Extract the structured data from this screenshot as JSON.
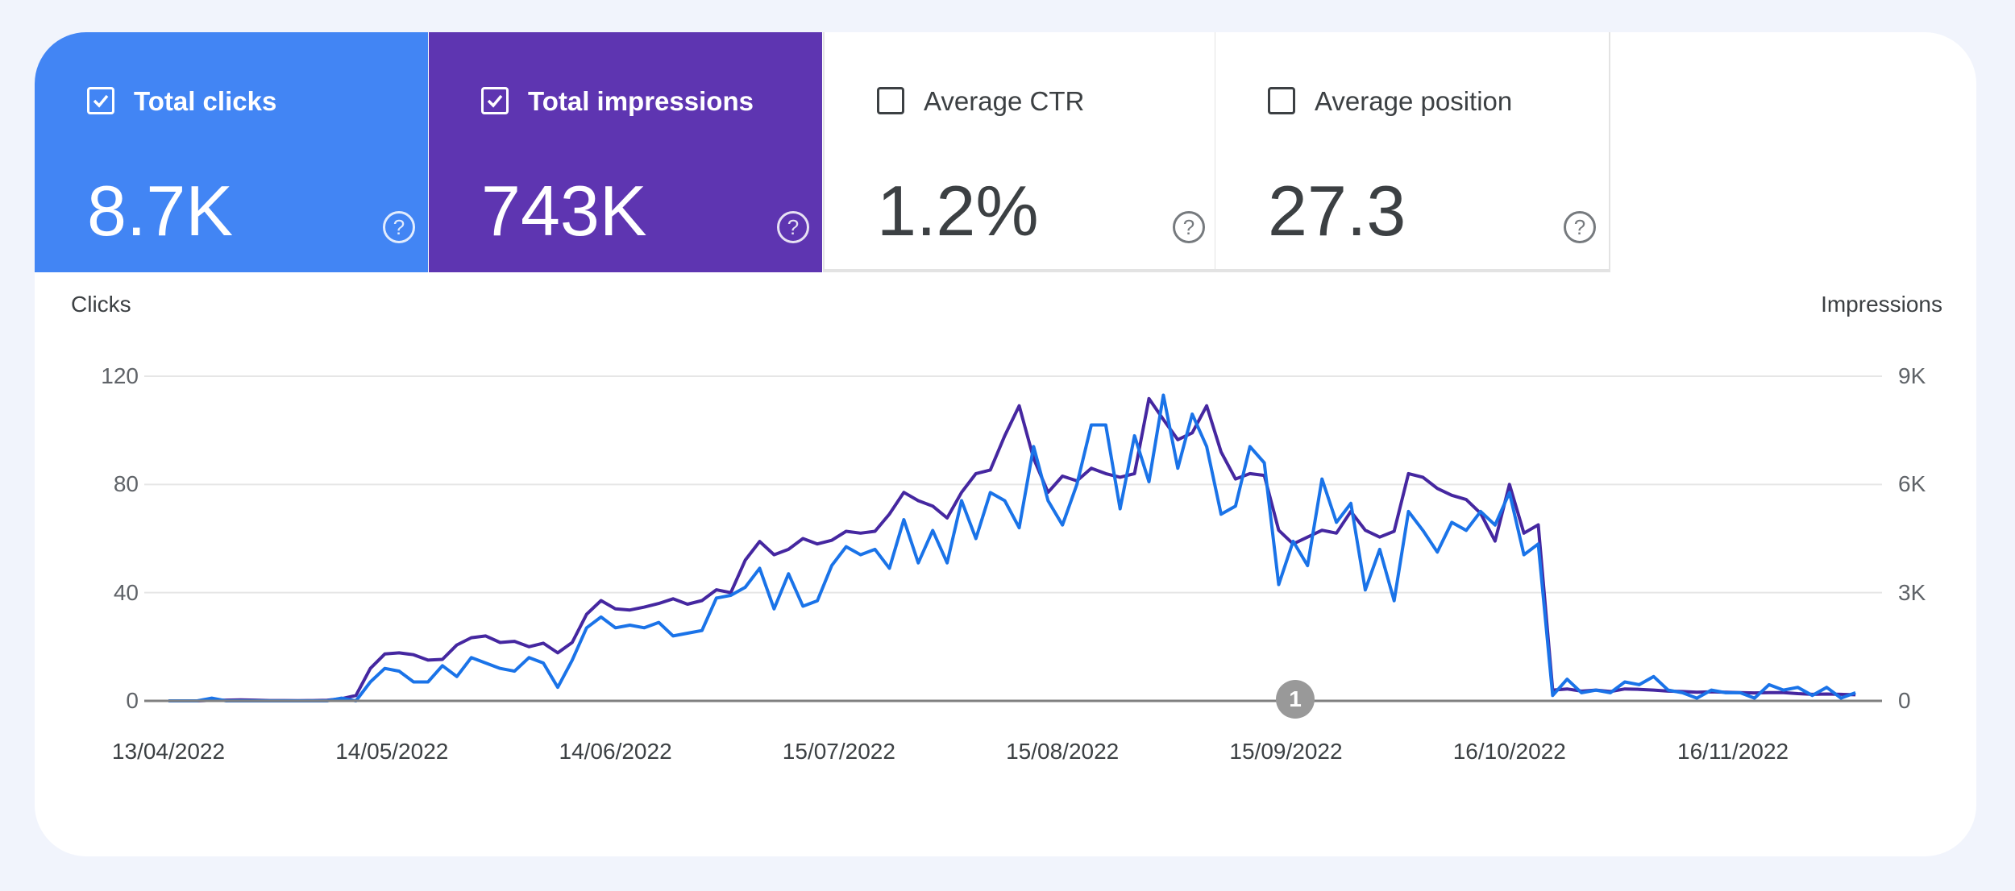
{
  "tiles": [
    {
      "label": "Total clicks",
      "value": "8.7K",
      "checked": true,
      "color": "#4285f4"
    },
    {
      "label": "Total impressions",
      "value": "743K",
      "checked": true,
      "color": "#5e35b1"
    },
    {
      "label": "Average CTR",
      "value": "1.2%",
      "checked": false
    },
    {
      "label": "Average position",
      "value": "27.3",
      "checked": false
    }
  ],
  "help_icon": "question-circle-icon",
  "annotation_marker": "1",
  "chart_data": {
    "type": "line",
    "left_axis": {
      "label": "Clicks",
      "ticks": [
        "0",
        "40",
        "80",
        "120"
      ],
      "range": [
        0,
        120
      ]
    },
    "right_axis": {
      "label": "Impressions",
      "ticks": [
        "0",
        "3K",
        "6K",
        "9K"
      ],
      "range": [
        0,
        9000
      ]
    },
    "x_ticks": [
      "13/04/2022",
      "14/05/2022",
      "14/06/2022",
      "15/07/2022",
      "15/08/2022",
      "15/09/2022",
      "16/10/2022",
      "16/11/2022"
    ],
    "grid": true,
    "series": [
      {
        "key": "clicks",
        "axis": "left",
        "color": "#1a73e8"
      },
      {
        "key": "impressions",
        "axis": "right",
        "color": "#4527a0"
      }
    ],
    "points": [
      [
        "13/04/2022",
        0,
        0
      ],
      [
        "15/04/2022",
        0,
        0
      ],
      [
        "17/04/2022",
        0,
        0
      ],
      [
        "19/04/2022",
        1,
        15
      ],
      [
        "21/04/2022",
        0,
        20
      ],
      [
        "23/04/2022",
        0,
        30
      ],
      [
        "25/04/2022",
        0,
        20
      ],
      [
        "27/04/2022",
        0,
        10
      ],
      [
        "29/04/2022",
        0,
        10
      ],
      [
        "01/05/2022",
        0,
        5
      ],
      [
        "03/05/2022",
        0,
        10
      ],
      [
        "05/05/2022",
        0,
        15
      ],
      [
        "07/05/2022",
        1,
        60
      ],
      [
        "09/05/2022",
        0,
        150
      ],
      [
        "11/05/2022",
        7,
        900
      ],
      [
        "13/05/2022",
        12,
        1300
      ],
      [
        "15/05/2022",
        11,
        1330
      ],
      [
        "17/05/2022",
        7,
        1280
      ],
      [
        "19/05/2022",
        7,
        1130
      ],
      [
        "21/05/2022",
        13,
        1150
      ],
      [
        "23/05/2022",
        9,
        1550
      ],
      [
        "25/05/2022",
        16,
        1750
      ],
      [
        "27/05/2022",
        14,
        1800
      ],
      [
        "29/05/2022",
        12,
        1620
      ],
      [
        "31/05/2022",
        11,
        1650
      ],
      [
        "02/06/2022",
        16,
        1500
      ],
      [
        "04/06/2022",
        14,
        1600
      ],
      [
        "06/06/2022",
        5,
        1330
      ],
      [
        "08/06/2022",
        15,
        1620
      ],
      [
        "10/06/2022",
        27,
        2400
      ],
      [
        "12/06/2022",
        31,
        2780
      ],
      [
        "14/06/2022",
        27,
        2550
      ],
      [
        "16/06/2022",
        28,
        2520
      ],
      [
        "18/06/2022",
        27,
        2600
      ],
      [
        "20/06/2022",
        29,
        2700
      ],
      [
        "22/06/2022",
        24,
        2830
      ],
      [
        "24/06/2022",
        25,
        2680
      ],
      [
        "26/06/2022",
        26,
        2780
      ],
      [
        "28/06/2022",
        38,
        3080
      ],
      [
        "30/06/2022",
        39,
        3000
      ],
      [
        "02/07/2022",
        42,
        3900
      ],
      [
        "04/07/2022",
        49,
        4420
      ],
      [
        "06/07/2022",
        34,
        4050
      ],
      [
        "08/07/2022",
        47,
        4200
      ],
      [
        "10/07/2022",
        35,
        4500
      ],
      [
        "12/07/2022",
        37,
        4350
      ],
      [
        "14/07/2022",
        50,
        4450
      ],
      [
        "16/07/2022",
        57,
        4700
      ],
      [
        "18/07/2022",
        54,
        4650
      ],
      [
        "20/07/2022",
        56,
        4700
      ],
      [
        "22/07/2022",
        49,
        5180
      ],
      [
        "24/07/2022",
        67,
        5780
      ],
      [
        "26/07/2022",
        51,
        5550
      ],
      [
        "28/07/2022",
        63,
        5400
      ],
      [
        "30/07/2022",
        51,
        5070
      ],
      [
        "01/08/2022",
        74,
        5780
      ],
      [
        "03/08/2022",
        60,
        6300
      ],
      [
        "05/08/2022",
        77,
        6400
      ],
      [
        "07/08/2022",
        74,
        7350
      ],
      [
        "09/08/2022",
        64,
        8180
      ],
      [
        "11/08/2022",
        94,
        6720
      ],
      [
        "13/08/2022",
        74,
        5780
      ],
      [
        "15/08/2022",
        65,
        6230
      ],
      [
        "17/08/2022",
        80,
        6100
      ],
      [
        "19/08/2022",
        102,
        6450
      ],
      [
        "21/08/2022",
        102,
        6300
      ],
      [
        "23/08/2022",
        71,
        6200
      ],
      [
        "25/08/2022",
        98,
        6300
      ],
      [
        "27/08/2022",
        81,
        8380
      ],
      [
        "29/08/2022",
        113,
        7800
      ],
      [
        "31/08/2022",
        86,
        7240
      ],
      [
        "02/09/2022",
        106,
        7430
      ],
      [
        "04/09/2022",
        94,
        8180
      ],
      [
        "06/09/2022",
        69,
        6900
      ],
      [
        "08/09/2022",
        72,
        6150
      ],
      [
        "10/09/2022",
        94,
        6300
      ],
      [
        "12/09/2022",
        88,
        6250
      ],
      [
        "14/09/2022",
        43,
        4730
      ],
      [
        "16/09/2022",
        59,
        4350
      ],
      [
        "18/09/2022",
        50,
        4540
      ],
      [
        "20/09/2022",
        82,
        4730
      ],
      [
        "22/09/2022",
        66,
        4650
      ],
      [
        "24/09/2022",
        73,
        5250
      ],
      [
        "26/09/2022",
        41,
        4730
      ],
      [
        "28/09/2022",
        56,
        4540
      ],
      [
        "30/09/2022",
        37,
        4700
      ],
      [
        "02/10/2022",
        70,
        6300
      ],
      [
        "04/10/2022",
        63,
        6200
      ],
      [
        "06/10/2022",
        55,
        5890
      ],
      [
        "08/10/2022",
        66,
        5700
      ],
      [
        "10/10/2022",
        63,
        5580
      ],
      [
        "12/10/2022",
        70,
        5200
      ],
      [
        "14/10/2022",
        65,
        4430
      ],
      [
        "16/10/2022",
        77,
        6000
      ],
      [
        "18/10/2022",
        54,
        4650
      ],
      [
        "20/10/2022",
        58,
        4880
      ],
      [
        "22/10/2022",
        2,
        300
      ],
      [
        "24/10/2022",
        8,
        330
      ],
      [
        "26/10/2022",
        3,
        270
      ],
      [
        "28/10/2022",
        4,
        300
      ],
      [
        "30/10/2022",
        3,
        260
      ],
      [
        "01/11/2022",
        7,
        330
      ],
      [
        "03/11/2022",
        6,
        320
      ],
      [
        "05/11/2022",
        9,
        300
      ],
      [
        "07/11/2022",
        4,
        270
      ],
      [
        "09/11/2022",
        3,
        260
      ],
      [
        "11/11/2022",
        1,
        240
      ],
      [
        "13/11/2022",
        4,
        250
      ],
      [
        "15/11/2022",
        3,
        240
      ],
      [
        "17/11/2022",
        3,
        230
      ],
      [
        "19/11/2022",
        1,
        220
      ],
      [
        "21/11/2022",
        6,
        230
      ],
      [
        "23/11/2022",
        4,
        230
      ],
      [
        "25/11/2022",
        5,
        200
      ],
      [
        "27/11/2022",
        2,
        180
      ],
      [
        "29/11/2022",
        5,
        190
      ],
      [
        "01/12/2022",
        1,
        180
      ],
      [
        "03/12/2022",
        3,
        170
      ]
    ]
  }
}
